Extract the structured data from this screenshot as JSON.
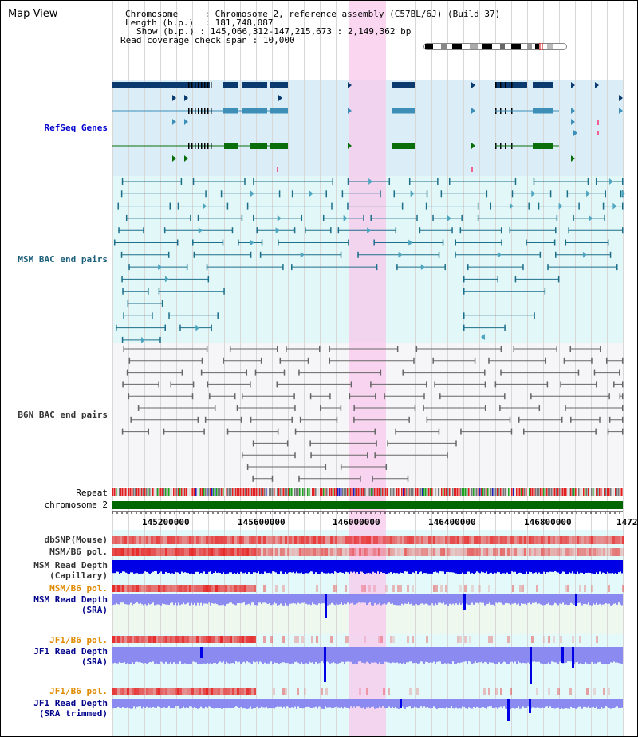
{
  "title": "Map View",
  "header": {
    "chromosome_key": "Chromosome",
    "chromosome_val": "Chromosome 2, reference assembly (C57BL/6J) (Build 37)",
    "length_key": "Length (b.p.)",
    "length_val": "181,748,087",
    "show_key": "Show (b.p.)",
    "show_val": "145,066,312-147,215,673 : 2,149,362 bp",
    "coverage_key": "Read coverage check span",
    "coverage_val": "10,000"
  },
  "tracks": {
    "refseq": "RefSeq Genes",
    "msm_bac": "MSM BAC end pairs",
    "b6n_bac": "B6N BAC end pairs",
    "repeat": "Repeat",
    "chromosome": "chromosome 2",
    "dbsnp": "dbSNP(Mouse)",
    "msm_b6_pol1": "MSM/B6 pol.",
    "msm_depth_cap_1": "MSM Read Depth",
    "msm_depth_cap_2": "(Capillary)",
    "msm_b6_pol2": "MSM/B6 pol.",
    "msm_depth_sra_1": "MSM Read Depth",
    "msm_depth_sra_2": "(SRA)",
    "jf1_b6_pol1": "JF1/B6 pol.",
    "jf1_depth_sra_1": "JF1 Read Depth",
    "jf1_depth_sra_2": "(SRA)",
    "jf1_b6_pol2": "JF1/B6 pol.",
    "jf1_depth_trim_1": "JF1 Read Depth",
    "jf1_depth_trim_2": "(SRA trimmed)"
  },
  "ruler": {
    "ticks": [
      "145200000",
      "145600000",
      "146000000",
      "146400000",
      "146800000",
      "1472"
    ]
  },
  "colors": {
    "refseq_bg": "#dbeef8",
    "msm_bg": "#e2f7f7",
    "b6n_bg": "#f5f5f8",
    "highlight": "#f8d8f0",
    "refseq_dark": "#0a3a6e",
    "refseq_mid": "#3d8fb8",
    "refseq_green": "#0a6e0a",
    "msm_line": "#1c6f8b",
    "b6n_line": "#666666",
    "chrom_green": "#006600",
    "depth_blue": "#0000e6",
    "depth_light": "#8a8af0"
  }
}
